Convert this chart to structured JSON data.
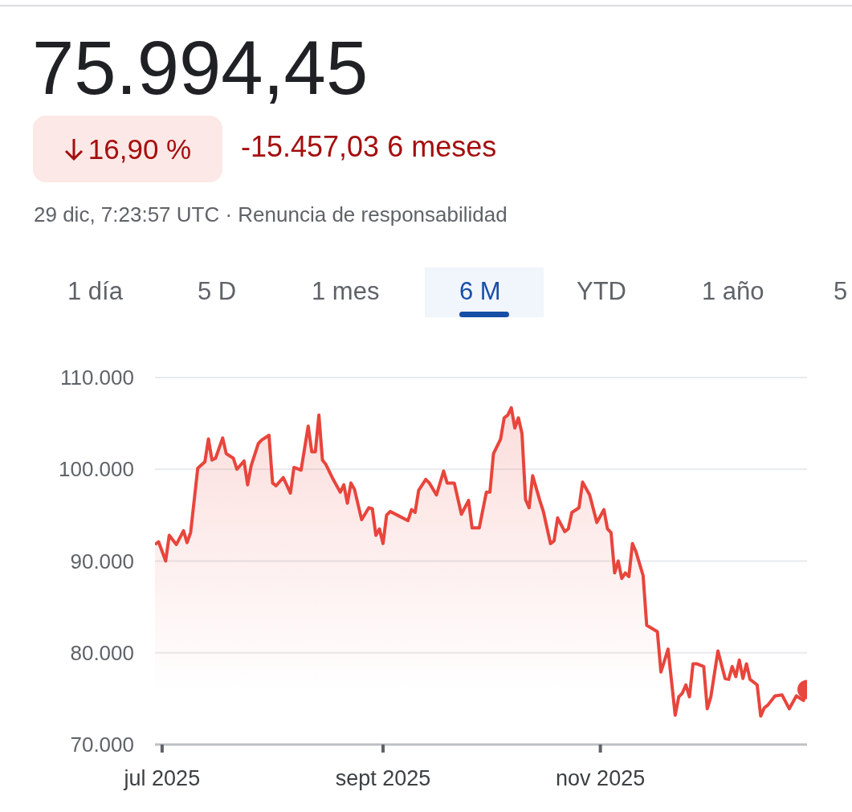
{
  "chart_data": {
    "type": "area",
    "title": "75.994,45",
    "annotations": [
      "16,90 %",
      "-15.457,03 6 meses",
      "29 dic, 7:23:57 UTC · Renuncia de responsabilidad",
      "1 día",
      "5 D",
      "1 mes",
      "6 M",
      "YTD",
      "1 año",
      "5"
    ],
    "x": [
      "2025-06-29",
      "2025-06-30",
      "2025-07-02",
      "2025-07-03",
      "2025-07-05",
      "2025-07-07",
      "2025-07-08",
      "2025-07-09",
      "2025-07-11",
      "2025-07-13",
      "2025-07-14",
      "2025-07-15",
      "2025-07-16",
      "2025-07-18",
      "2025-07-19",
      "2025-07-21",
      "2025-07-22",
      "2025-07-24",
      "2025-07-25",
      "2025-07-26",
      "2025-07-28",
      "2025-07-29",
      "2025-07-31",
      "2025-08-01",
      "2025-08-02",
      "2025-08-04",
      "2025-08-06",
      "2025-08-07",
      "2025-08-09",
      "2025-08-11",
      "2025-08-12",
      "2025-08-13",
      "2025-08-14",
      "2025-08-15",
      "2025-08-16",
      "2025-08-18",
      "2025-08-20",
      "2025-08-21",
      "2025-08-22",
      "2025-08-23",
      "2025-08-24",
      "2025-08-26",
      "2025-08-28",
      "2025-08-29",
      "2025-08-30",
      "2025-08-31",
      "2025-09-01",
      "2025-09-02",
      "2025-09-03",
      "2025-09-05",
      "2025-09-08",
      "2025-09-09",
      "2025-09-10",
      "2025-09-11",
      "2025-09-13",
      "2025-09-14",
      "2025-09-16",
      "2025-09-18",
      "2025-09-19",
      "2025-09-21",
      "2025-09-23",
      "2025-09-25",
      "2025-09-26",
      "2025-09-28",
      "2025-09-30",
      "2025-10-01",
      "2025-10-02",
      "2025-10-04",
      "2025-10-05",
      "2025-10-06",
      "2025-10-07",
      "2025-10-08",
      "2025-10-09",
      "2025-10-10",
      "2025-10-11",
      "2025-10-12",
      "2025-10-13",
      "2025-10-15",
      "2025-10-16",
      "2025-10-18",
      "2025-10-19",
      "2025-10-20",
      "2025-10-22",
      "2025-10-23",
      "2025-10-24",
      "2025-10-26",
      "2025-10-27",
      "2025-10-29",
      "2025-10-31",
      "2025-11-02",
      "2025-11-03",
      "2025-11-04",
      "2025-11-05",
      "2025-11-06",
      "2025-11-07",
      "2025-11-08",
      "2025-11-09",
      "2025-11-10",
      "2025-11-11",
      "2025-11-13",
      "2025-11-14",
      "2025-11-17",
      "2025-11-18",
      "2025-11-20",
      "2025-11-22",
      "2025-11-23",
      "2025-11-24",
      "2025-11-25",
      "2025-11-26",
      "2025-11-27",
      "2025-11-28",
      "2025-11-30",
      "2025-12-01",
      "2025-12-02",
      "2025-12-04",
      "2025-12-06",
      "2025-12-07",
      "2025-12-08",
      "2025-12-09",
      "2025-12-10",
      "2025-12-11",
      "2025-12-12",
      "2025-12-13",
      "2025-12-15",
      "2025-12-16",
      "2025-12-17",
      "2025-12-18",
      "2025-12-20",
      "2025-12-22",
      "2025-12-24",
      "2025-12-26",
      "2025-12-28",
      "2025-12-29"
    ],
    "series": [
      {
        "color": "#e8453c",
        "values": [
          91800,
          92100,
          90000,
          92800,
          91800,
          93300,
          92000,
          93100,
          100100,
          100800,
          103300,
          101000,
          101200,
          103400,
          101700,
          101200,
          100000,
          100900,
          98300,
          100400,
          102800,
          103200,
          103700,
          98500,
          98200,
          99100,
          97400,
          100200,
          99900,
          104700,
          101900,
          101900,
          105900,
          101000,
          100500,
          98900,
          97500,
          98300,
          96300,
          98500,
          97800,
          94500,
          95800,
          95700,
          92800,
          93500,
          91900,
          95000,
          95400,
          95000,
          94400,
          95600,
          95300,
          97700,
          98900,
          98500,
          97200,
          99800,
          98500,
          98500,
          95100,
          96600,
          93600,
          93600,
          97500,
          97500,
          101700,
          103300,
          105600,
          105900,
          106700,
          104500,
          105600,
          103900,
          96700,
          95800,
          99300,
          96600,
          95400,
          91900,
          92200,
          94700,
          93200,
          93500,
          95300,
          95800,
          98600,
          97200,
          94200,
          95600,
          93500,
          93100,
          88700,
          90000,
          88100,
          88700,
          88300,
          91900,
          91000,
          88400,
          83000,
          82300,
          77900,
          80400,
          73200,
          75200,
          75600,
          76500,
          75200,
          78800,
          78800,
          78500,
          73900,
          75200,
          80200,
          77200,
          77100,
          78500,
          77400,
          79200,
          77200,
          78800,
          77100,
          76500,
          73100,
          74000,
          74300,
          75300,
          75400,
          73900,
          75300,
          74800,
          76000
        ]
      }
    ],
    "xlim": [
      "2025-06-29",
      "2025-12-29"
    ],
    "xticks": [
      {
        "value": "2025-07-01",
        "label": "jul 2025"
      },
      {
        "value": "2025-09-01",
        "label": "sept 2025"
      },
      {
        "value": "2025-11-01",
        "label": "nov 2025"
      }
    ],
    "ylim": [
      70000,
      110000
    ],
    "yticks": [
      {
        "value": 70000,
        "label": "70.000"
      },
      {
        "value": 80000,
        "label": "80.000"
      },
      {
        "value": 90000,
        "label": "90.000"
      },
      {
        "value": 100000,
        "label": "100.000"
      },
      {
        "value": 110000,
        "label": "110.000"
      }
    ],
    "grid": "y"
  }
}
